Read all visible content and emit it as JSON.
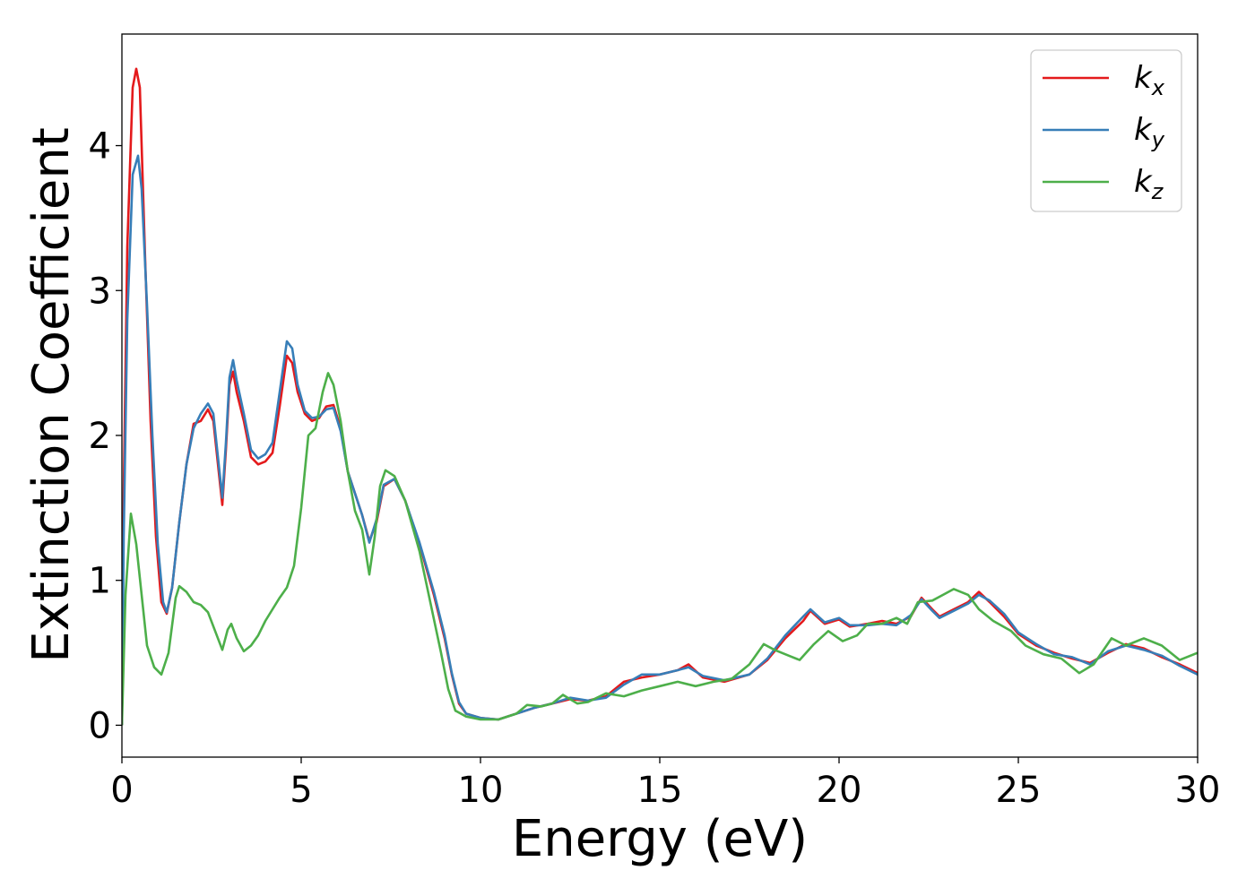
{
  "chart_data": {
    "type": "line",
    "title": "",
    "xlabel": "Energy (eV)",
    "ylabel": "Extinction Coefficient",
    "xlim": [
      0,
      30
    ],
    "ylim": [
      -0.22,
      4.77
    ],
    "xticks": [
      0,
      5,
      10,
      15,
      20,
      25,
      30
    ],
    "yticks": [
      0,
      1,
      2,
      3,
      4
    ],
    "grid": false,
    "legend_position": "top-right",
    "series": [
      {
        "name": "k",
        "subscript": "x",
        "color": "#e41a1c",
        "points": [
          [
            0,
            0.0
          ],
          [
            0.05,
            1.6
          ],
          [
            0.15,
            3.3
          ],
          [
            0.3,
            4.4
          ],
          [
            0.4,
            4.53
          ],
          [
            0.5,
            4.4
          ],
          [
            0.65,
            3.2
          ],
          [
            0.8,
            2.1
          ],
          [
            0.95,
            1.3
          ],
          [
            1.1,
            0.85
          ],
          [
            1.25,
            0.77
          ],
          [
            1.4,
            0.95
          ],
          [
            1.6,
            1.4
          ],
          [
            1.8,
            1.8
          ],
          [
            2.0,
            2.08
          ],
          [
            2.2,
            2.1
          ],
          [
            2.4,
            2.18
          ],
          [
            2.55,
            2.1
          ],
          [
            2.7,
            1.75
          ],
          [
            2.8,
            1.52
          ],
          [
            2.9,
            1.9
          ],
          [
            3.0,
            2.35
          ],
          [
            3.1,
            2.44
          ],
          [
            3.2,
            2.3
          ],
          [
            3.4,
            2.1
          ],
          [
            3.6,
            1.85
          ],
          [
            3.8,
            1.8
          ],
          [
            4.0,
            1.82
          ],
          [
            4.2,
            1.88
          ],
          [
            4.4,
            2.2
          ],
          [
            4.6,
            2.55
          ],
          [
            4.75,
            2.5
          ],
          [
            4.9,
            2.3
          ],
          [
            5.1,
            2.15
          ],
          [
            5.3,
            2.1
          ],
          [
            5.5,
            2.12
          ],
          [
            5.7,
            2.2
          ],
          [
            5.9,
            2.21
          ],
          [
            6.1,
            2.05
          ],
          [
            6.3,
            1.75
          ],
          [
            6.5,
            1.6
          ],
          [
            6.7,
            1.45
          ],
          [
            6.9,
            1.27
          ],
          [
            7.1,
            1.4
          ],
          [
            7.3,
            1.65
          ],
          [
            7.6,
            1.7
          ],
          [
            7.9,
            1.55
          ],
          [
            8.3,
            1.25
          ],
          [
            8.7,
            0.9
          ],
          [
            9.0,
            0.6
          ],
          [
            9.2,
            0.35
          ],
          [
            9.4,
            0.15
          ],
          [
            9.6,
            0.08
          ],
          [
            10.0,
            0.05
          ],
          [
            10.5,
            0.04
          ],
          [
            11.0,
            0.08
          ],
          [
            11.5,
            0.12
          ],
          [
            12.0,
            0.15
          ],
          [
            12.5,
            0.18
          ],
          [
            13.0,
            0.17
          ],
          [
            13.5,
            0.2
          ],
          [
            14.0,
            0.3
          ],
          [
            14.5,
            0.33
          ],
          [
            15.0,
            0.35
          ],
          [
            15.5,
            0.38
          ],
          [
            15.8,
            0.42
          ],
          [
            16.2,
            0.33
          ],
          [
            16.8,
            0.3
          ],
          [
            17.5,
            0.35
          ],
          [
            18.0,
            0.45
          ],
          [
            18.5,
            0.6
          ],
          [
            19.0,
            0.72
          ],
          [
            19.2,
            0.79
          ],
          [
            19.6,
            0.7
          ],
          [
            20.0,
            0.73
          ],
          [
            20.3,
            0.68
          ],
          [
            20.8,
            0.7
          ],
          [
            21.2,
            0.72
          ],
          [
            21.6,
            0.7
          ],
          [
            22.0,
            0.75
          ],
          [
            22.3,
            0.88
          ],
          [
            22.6,
            0.8
          ],
          [
            22.8,
            0.75
          ],
          [
            23.2,
            0.8
          ],
          [
            23.6,
            0.85
          ],
          [
            23.9,
            0.92
          ],
          [
            24.2,
            0.85
          ],
          [
            24.6,
            0.75
          ],
          [
            25.0,
            0.63
          ],
          [
            25.5,
            0.55
          ],
          [
            26.0,
            0.5
          ],
          [
            26.5,
            0.46
          ],
          [
            27.0,
            0.43
          ],
          [
            27.5,
            0.5
          ],
          [
            28.0,
            0.56
          ],
          [
            28.5,
            0.53
          ],
          [
            29.0,
            0.47
          ],
          [
            29.5,
            0.42
          ],
          [
            30.0,
            0.36
          ]
        ]
      },
      {
        "name": "k",
        "subscript": "y",
        "color": "#377eb8",
        "points": [
          [
            0,
            0.0
          ],
          [
            0.05,
            1.3
          ],
          [
            0.15,
            2.8
          ],
          [
            0.3,
            3.8
          ],
          [
            0.45,
            3.93
          ],
          [
            0.55,
            3.7
          ],
          [
            0.7,
            2.9
          ],
          [
            0.85,
            2.0
          ],
          [
            1.0,
            1.25
          ],
          [
            1.15,
            0.85
          ],
          [
            1.25,
            0.78
          ],
          [
            1.4,
            0.95
          ],
          [
            1.6,
            1.4
          ],
          [
            1.8,
            1.8
          ],
          [
            2.0,
            2.05
          ],
          [
            2.2,
            2.15
          ],
          [
            2.4,
            2.22
          ],
          [
            2.55,
            2.15
          ],
          [
            2.7,
            1.8
          ],
          [
            2.8,
            1.57
          ],
          [
            2.9,
            1.95
          ],
          [
            3.0,
            2.4
          ],
          [
            3.1,
            2.52
          ],
          [
            3.2,
            2.38
          ],
          [
            3.4,
            2.15
          ],
          [
            3.6,
            1.9
          ],
          [
            3.8,
            1.84
          ],
          [
            4.0,
            1.87
          ],
          [
            4.2,
            1.95
          ],
          [
            4.4,
            2.3
          ],
          [
            4.6,
            2.65
          ],
          [
            4.75,
            2.6
          ],
          [
            4.9,
            2.35
          ],
          [
            5.1,
            2.17
          ],
          [
            5.3,
            2.12
          ],
          [
            5.5,
            2.13
          ],
          [
            5.7,
            2.18
          ],
          [
            5.9,
            2.19
          ],
          [
            6.1,
            2.03
          ],
          [
            6.3,
            1.75
          ],
          [
            6.5,
            1.6
          ],
          [
            6.7,
            1.45
          ],
          [
            6.9,
            1.26
          ],
          [
            7.1,
            1.42
          ],
          [
            7.3,
            1.66
          ],
          [
            7.6,
            1.7
          ],
          [
            7.9,
            1.55
          ],
          [
            8.3,
            1.26
          ],
          [
            8.7,
            0.92
          ],
          [
            9.0,
            0.62
          ],
          [
            9.2,
            0.36
          ],
          [
            9.4,
            0.16
          ],
          [
            9.6,
            0.08
          ],
          [
            10.0,
            0.05
          ],
          [
            10.5,
            0.04
          ],
          [
            11.0,
            0.08
          ],
          [
            11.5,
            0.12
          ],
          [
            12.0,
            0.15
          ],
          [
            12.5,
            0.19
          ],
          [
            13.0,
            0.17
          ],
          [
            13.5,
            0.19
          ],
          [
            14.0,
            0.28
          ],
          [
            14.5,
            0.35
          ],
          [
            15.0,
            0.35
          ],
          [
            15.5,
            0.38
          ],
          [
            15.8,
            0.4
          ],
          [
            16.2,
            0.34
          ],
          [
            16.8,
            0.31
          ],
          [
            17.5,
            0.35
          ],
          [
            18.0,
            0.46
          ],
          [
            18.5,
            0.62
          ],
          [
            19.0,
            0.75
          ],
          [
            19.2,
            0.8
          ],
          [
            19.6,
            0.71
          ],
          [
            20.0,
            0.74
          ],
          [
            20.3,
            0.69
          ],
          [
            20.8,
            0.69
          ],
          [
            21.2,
            0.7
          ],
          [
            21.6,
            0.69
          ],
          [
            22.0,
            0.76
          ],
          [
            22.3,
            0.87
          ],
          [
            22.6,
            0.79
          ],
          [
            22.8,
            0.74
          ],
          [
            23.2,
            0.79
          ],
          [
            23.6,
            0.84
          ],
          [
            23.9,
            0.9
          ],
          [
            24.2,
            0.86
          ],
          [
            24.6,
            0.77
          ],
          [
            25.0,
            0.64
          ],
          [
            25.5,
            0.56
          ],
          [
            26.0,
            0.49
          ],
          [
            26.5,
            0.47
          ],
          [
            27.0,
            0.42
          ],
          [
            27.5,
            0.51
          ],
          [
            28.0,
            0.55
          ],
          [
            28.5,
            0.52
          ],
          [
            29.0,
            0.48
          ],
          [
            29.5,
            0.41
          ],
          [
            30.0,
            0.35
          ]
        ]
      },
      {
        "name": "k",
        "subscript": "z",
        "color": "#4daf4a",
        "points": [
          [
            0,
            0.0
          ],
          [
            0.1,
            0.9
          ],
          [
            0.25,
            1.46
          ],
          [
            0.4,
            1.25
          ],
          [
            0.55,
            0.9
          ],
          [
            0.7,
            0.55
          ],
          [
            0.9,
            0.4
          ],
          [
            1.1,
            0.35
          ],
          [
            1.3,
            0.5
          ],
          [
            1.5,
            0.88
          ],
          [
            1.6,
            0.96
          ],
          [
            1.8,
            0.92
          ],
          [
            2.0,
            0.85
          ],
          [
            2.2,
            0.83
          ],
          [
            2.4,
            0.78
          ],
          [
            2.6,
            0.65
          ],
          [
            2.8,
            0.52
          ],
          [
            2.95,
            0.66
          ],
          [
            3.05,
            0.7
          ],
          [
            3.2,
            0.6
          ],
          [
            3.4,
            0.51
          ],
          [
            3.6,
            0.55
          ],
          [
            3.8,
            0.62
          ],
          [
            4.0,
            0.72
          ],
          [
            4.2,
            0.8
          ],
          [
            4.4,
            0.88
          ],
          [
            4.6,
            0.95
          ],
          [
            4.8,
            1.1
          ],
          [
            5.0,
            1.5
          ],
          [
            5.2,
            2.0
          ],
          [
            5.4,
            2.05
          ],
          [
            5.6,
            2.3
          ],
          [
            5.75,
            2.43
          ],
          [
            5.9,
            2.35
          ],
          [
            6.1,
            2.1
          ],
          [
            6.3,
            1.75
          ],
          [
            6.5,
            1.48
          ],
          [
            6.7,
            1.35
          ],
          [
            6.9,
            1.04
          ],
          [
            7.05,
            1.3
          ],
          [
            7.2,
            1.65
          ],
          [
            7.35,
            1.76
          ],
          [
            7.6,
            1.72
          ],
          [
            7.9,
            1.55
          ],
          [
            8.3,
            1.2
          ],
          [
            8.6,
            0.85
          ],
          [
            8.9,
            0.5
          ],
          [
            9.1,
            0.25
          ],
          [
            9.3,
            0.1
          ],
          [
            9.6,
            0.06
          ],
          [
            10.0,
            0.04
          ],
          [
            10.5,
            0.04
          ],
          [
            11.0,
            0.08
          ],
          [
            11.3,
            0.14
          ],
          [
            11.7,
            0.13
          ],
          [
            12.0,
            0.15
          ],
          [
            12.3,
            0.21
          ],
          [
            12.7,
            0.15
          ],
          [
            13.0,
            0.16
          ],
          [
            13.5,
            0.22
          ],
          [
            14.0,
            0.2
          ],
          [
            14.5,
            0.24
          ],
          [
            15.0,
            0.27
          ],
          [
            15.5,
            0.3
          ],
          [
            16.0,
            0.27
          ],
          [
            16.5,
            0.3
          ],
          [
            17.0,
            0.32
          ],
          [
            17.5,
            0.42
          ],
          [
            17.9,
            0.56
          ],
          [
            18.2,
            0.52
          ],
          [
            18.6,
            0.48
          ],
          [
            18.9,
            0.45
          ],
          [
            19.3,
            0.56
          ],
          [
            19.7,
            0.65
          ],
          [
            20.1,
            0.58
          ],
          [
            20.5,
            0.62
          ],
          [
            20.8,
            0.7
          ],
          [
            21.2,
            0.7
          ],
          [
            21.6,
            0.74
          ],
          [
            21.9,
            0.7
          ],
          [
            22.2,
            0.85
          ],
          [
            22.6,
            0.86
          ],
          [
            22.9,
            0.9
          ],
          [
            23.2,
            0.94
          ],
          [
            23.6,
            0.9
          ],
          [
            23.9,
            0.8
          ],
          [
            24.3,
            0.72
          ],
          [
            24.8,
            0.65
          ],
          [
            25.2,
            0.55
          ],
          [
            25.7,
            0.49
          ],
          [
            26.2,
            0.46
          ],
          [
            26.7,
            0.36
          ],
          [
            27.1,
            0.42
          ],
          [
            27.6,
            0.6
          ],
          [
            28.0,
            0.55
          ],
          [
            28.5,
            0.6
          ],
          [
            29.0,
            0.55
          ],
          [
            29.5,
            0.45
          ],
          [
            30.0,
            0.5
          ]
        ]
      }
    ]
  }
}
